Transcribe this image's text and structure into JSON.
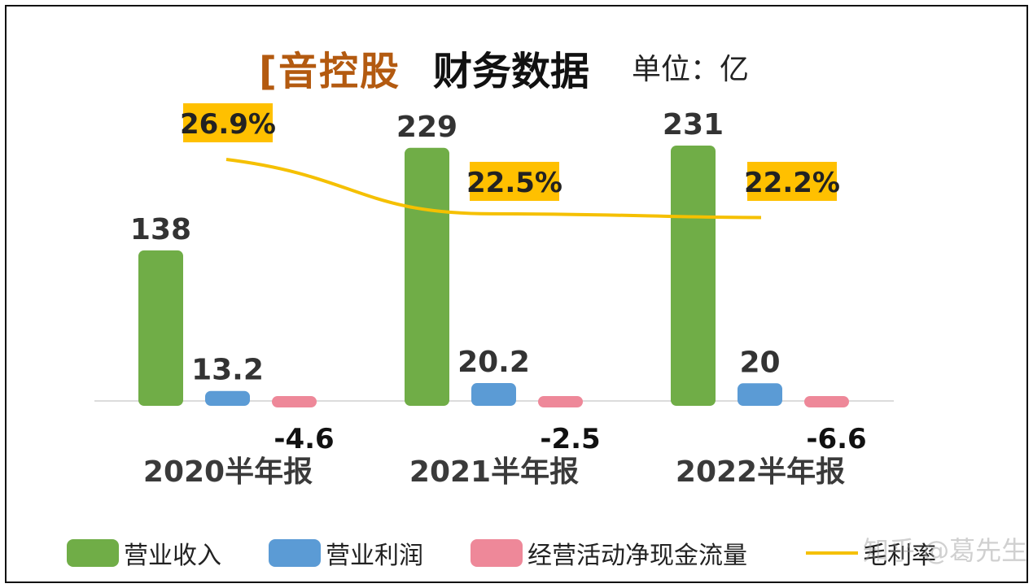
{
  "title": {
    "brand": "[音控股",
    "main": "财务数据",
    "unit": "单位：亿"
  },
  "colors": {
    "revenue": "#70ad47",
    "profit": "#5b9bd5",
    "cashflow": "#ee8899",
    "margin_line": "#f5c000",
    "label_bg": "#ffc000"
  },
  "chart_data": {
    "type": "bar",
    "categories": [
      "2020半年报",
      "2021半年报",
      "2022半年报"
    ],
    "series": [
      {
        "name": "营业收入",
        "values": [
          138,
          229,
          231
        ],
        "labels": [
          "138",
          "229",
          "231"
        ]
      },
      {
        "name": "营业利润",
        "values": [
          13.2,
          20.2,
          20
        ],
        "labels": [
          "13.2",
          "20.2",
          "20"
        ]
      },
      {
        "name": "经营活动净现金流量",
        "values": [
          -4.6,
          -2.5,
          -6.6
        ],
        "labels": [
          "-4.6",
          "-2.5",
          "-6.6"
        ]
      }
    ],
    "line_series": {
      "name": "毛利率",
      "values": [
        26.9,
        22.5,
        22.2
      ],
      "labels": [
        "26.9%",
        "22.5%",
        "22.2%"
      ]
    },
    "legend_position": "bottom"
  },
  "legend": {
    "items": [
      "营业收入",
      "营业利润",
      "经营活动净现金流量",
      "毛利率"
    ]
  },
  "watermark": "知乎 @葛先生"
}
